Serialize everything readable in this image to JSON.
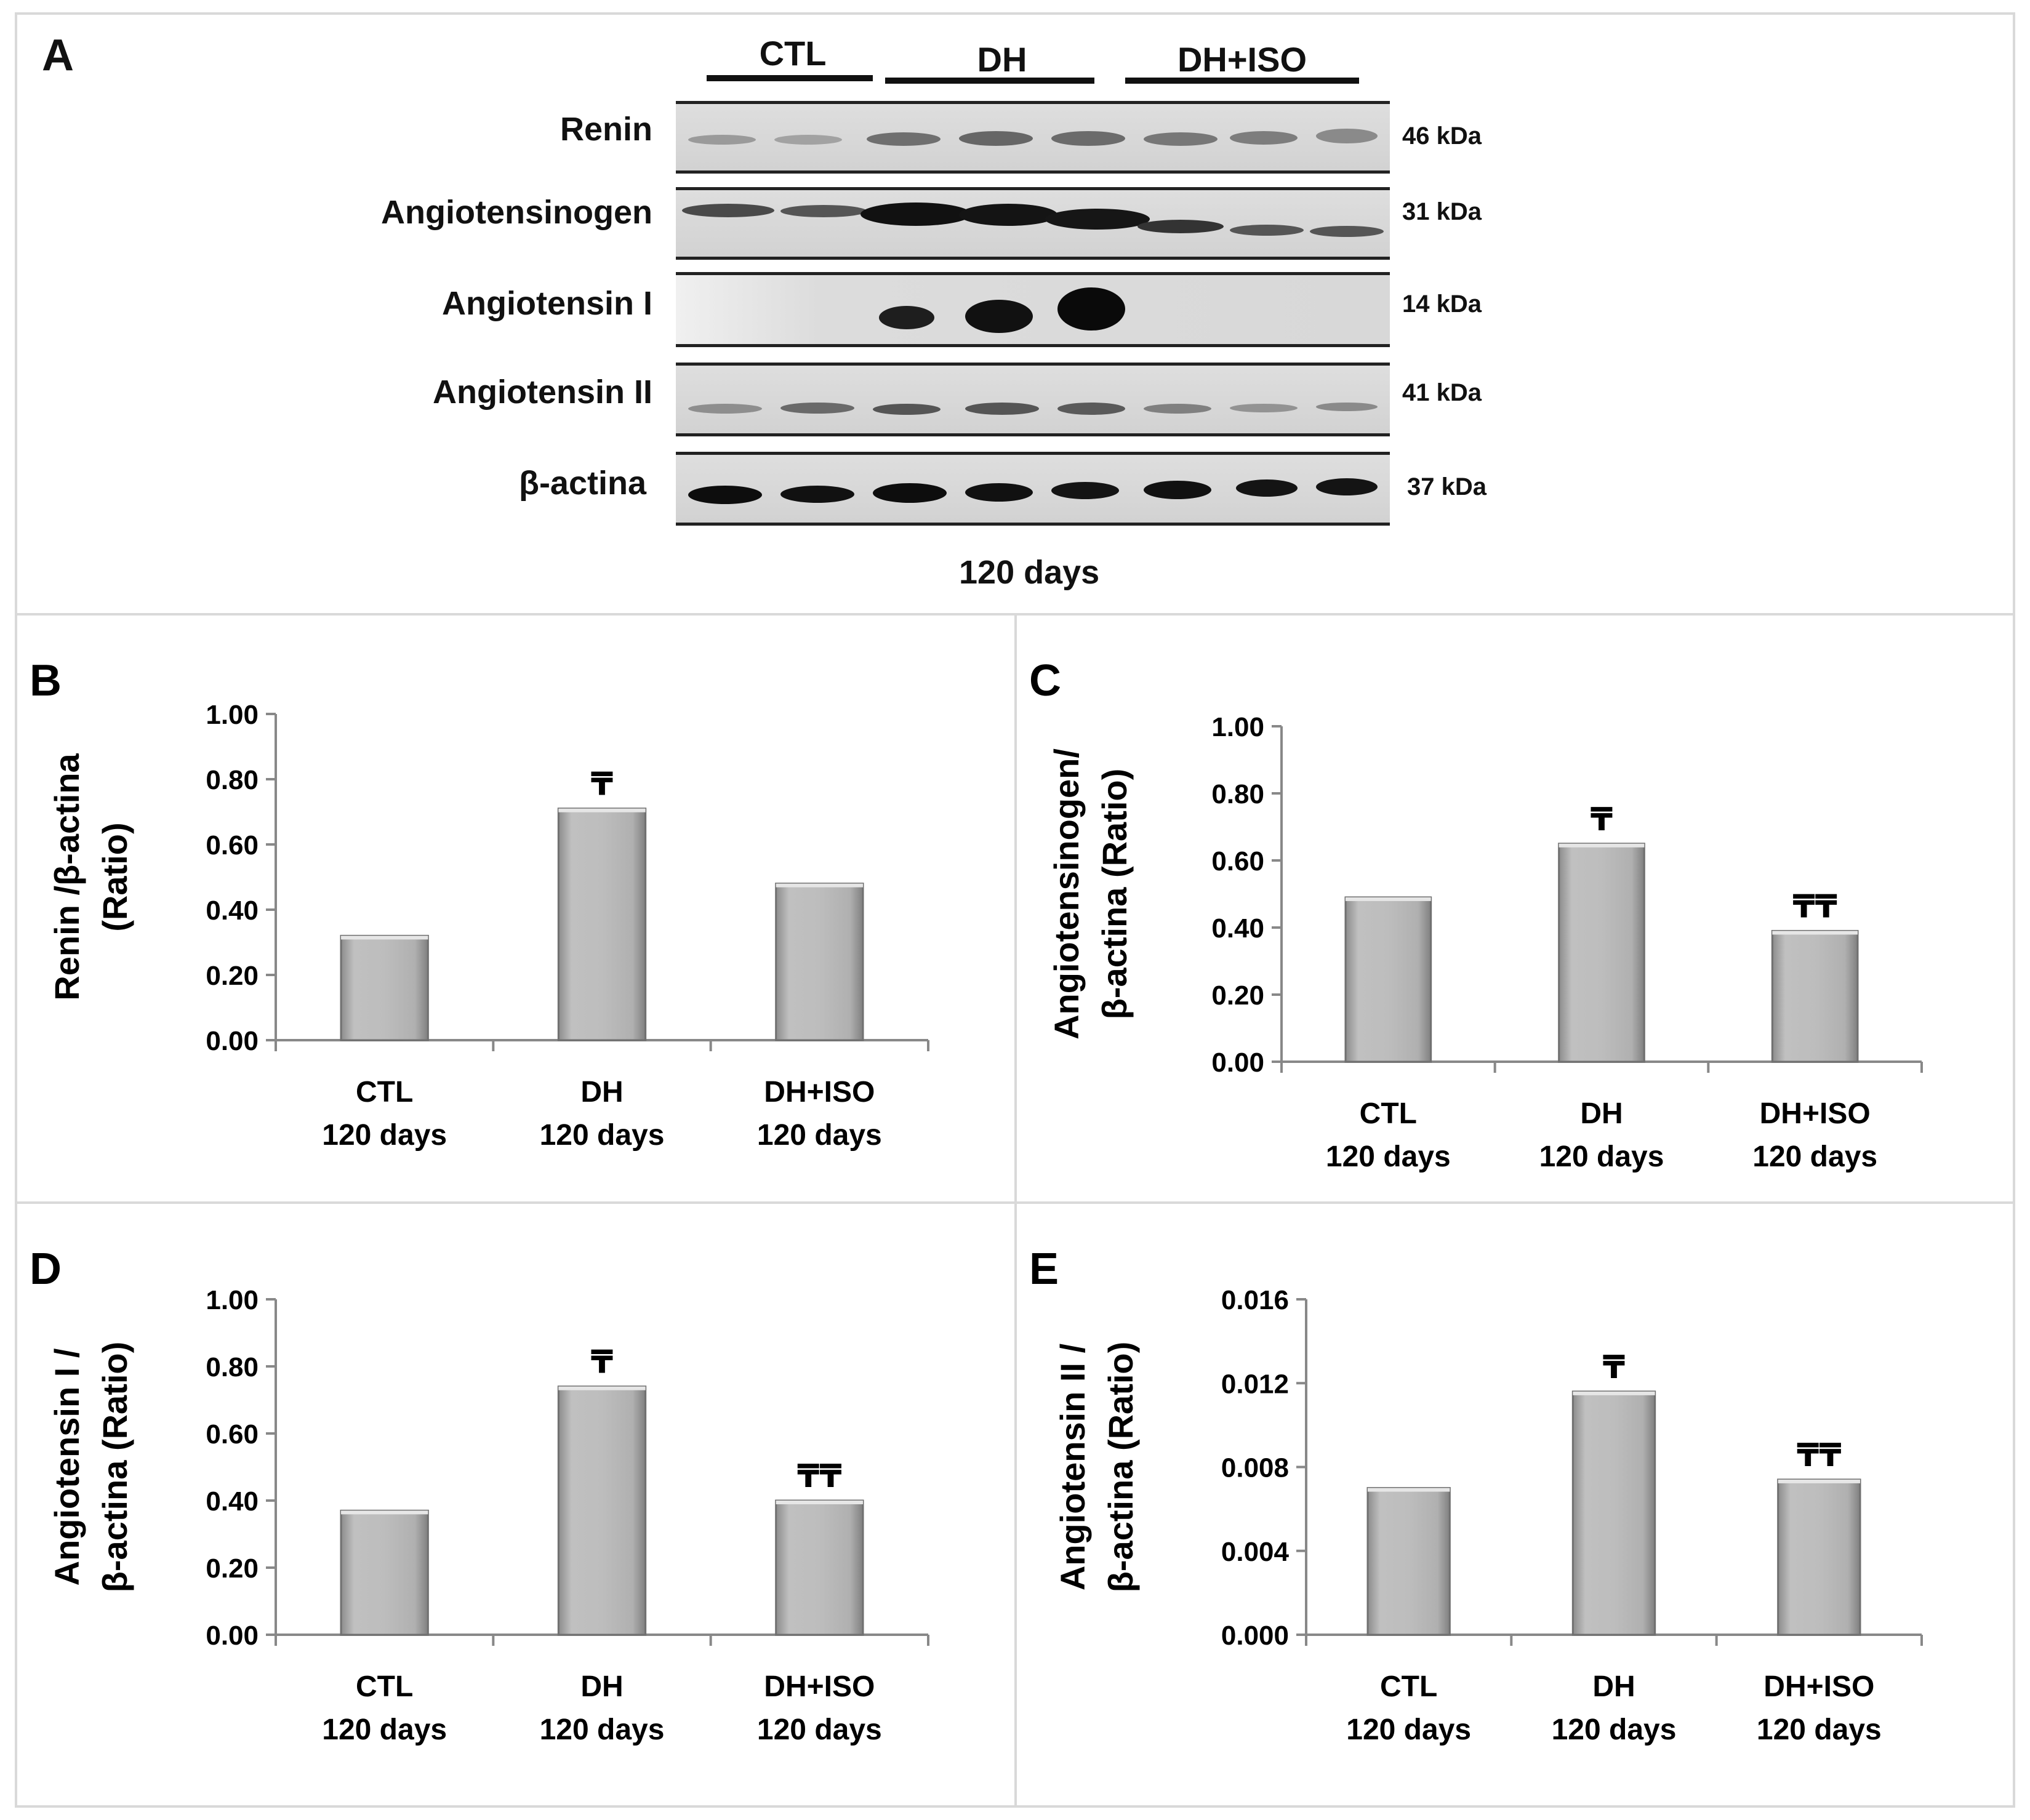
{
  "panel_a": {
    "label": "A",
    "groups": [
      "CTL",
      "DH",
      "DH+ISO"
    ],
    "blots": [
      {
        "protein": "Renin",
        "kda": "46 kDa"
      },
      {
        "protein": "Angiotensinogen",
        "kda": "31 kDa"
      },
      {
        "protein": "Angiotensin I",
        "kda": "14 kDa"
      },
      {
        "protein": "Angiotensin II",
        "kda": "41 kDa"
      },
      {
        "protein": "β-actina",
        "kda": "37 kDa"
      }
    ],
    "footer": "120 days"
  },
  "chart_data": [
    {
      "panel": "B",
      "type": "bar",
      "categories": [
        [
          "CTL",
          "120 days"
        ],
        [
          "DH",
          "120 days"
        ],
        [
          "DH+ISO",
          "120 days"
        ]
      ],
      "values": [
        0.32,
        0.71,
        0.48
      ],
      "annotations": [
        "",
        "₸",
        ""
      ],
      "ylabel": [
        "Renin /β-actina",
        "(Ratio)"
      ],
      "ylim": [
        0,
        1.0
      ],
      "yticks": [
        "0.00",
        "0.20",
        "0.40",
        "0.60",
        "0.80",
        "1.00"
      ]
    },
    {
      "panel": "C",
      "type": "bar",
      "categories": [
        [
          "CTL",
          "120 days"
        ],
        [
          "DH",
          "120 days"
        ],
        [
          "DH+ISO",
          "120 days"
        ]
      ],
      "values": [
        0.49,
        0.65,
        0.39
      ],
      "annotations": [
        "",
        "₸",
        "₸₸"
      ],
      "ylabel": [
        "Angiotensinogen/",
        "β-actina (Ratio)"
      ],
      "ylim": [
        0,
        1.0
      ],
      "yticks": [
        "0.00",
        "0.20",
        "0.40",
        "0.60",
        "0.80",
        "1.00"
      ]
    },
    {
      "panel": "D",
      "type": "bar",
      "categories": [
        [
          "CTL",
          "120 days"
        ],
        [
          "DH",
          "120 days"
        ],
        [
          "DH+ISO",
          "120 days"
        ]
      ],
      "values": [
        0.37,
        0.74,
        0.4
      ],
      "annotations": [
        "",
        "₸",
        "₸₸"
      ],
      "ylabel": [
        "Angiotensin I /",
        "β-actina (Ratio)"
      ],
      "ylim": [
        0,
        1.0
      ],
      "yticks": [
        "0.00",
        "0.20",
        "0.40",
        "0.60",
        "0.80",
        "1.00"
      ]
    },
    {
      "panel": "E",
      "type": "bar",
      "categories": [
        [
          "CTL",
          "120 days"
        ],
        [
          "DH",
          "120 days"
        ],
        [
          "DH+ISO",
          "120 days"
        ]
      ],
      "values": [
        0.007,
        0.0116,
        0.0074
      ],
      "annotations": [
        "",
        "₸",
        "₸₸"
      ],
      "ylabel": [
        "Angiotensin II /",
        "β-actina (Ratio)"
      ],
      "ylim": [
        0,
        0.016
      ],
      "yticks": [
        "0.000",
        "0.004",
        "0.008",
        "0.012",
        "0.016"
      ]
    }
  ]
}
